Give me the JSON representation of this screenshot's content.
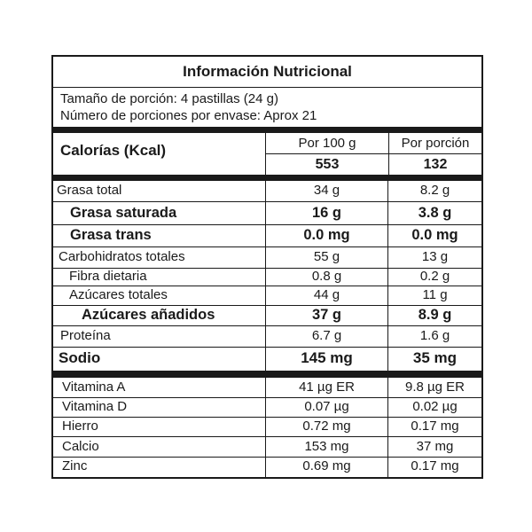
{
  "title": "Información Nutricional",
  "serving": {
    "size": "Tamaño de porción: 4 pastillas (24 g)",
    "servings": "Número de porciones por envase: Aprox 21"
  },
  "calories": {
    "label": "Calorías (Kcal)",
    "col1_header": "Por 100 g",
    "col2_header": "Por porción",
    "per100": "553",
    "perServing": "132"
  },
  "nutrients": [
    {
      "label": "Grasa total",
      "per100": "34 g",
      "perServing": "8.2 g",
      "bold": false
    },
    {
      "label": "Grasa saturada",
      "per100": "16 g",
      "perServing": "3.8 g",
      "bold": true
    },
    {
      "label": "Grasa trans",
      "per100": "0.0 mg",
      "perServing": "0.0 mg",
      "bold": true
    },
    {
      "label": "Carbohidratos totales",
      "per100": "55 g",
      "perServing": "13 g",
      "bold": false
    },
    {
      "label": "Fibra dietaria",
      "per100": "0.8 g",
      "perServing": "0.2 g",
      "bold": false
    },
    {
      "label": "Azúcares totales",
      "per100": "44 g",
      "perServing": "11 g",
      "bold": false
    },
    {
      "label": "Azúcares añadidos",
      "per100": "37 g",
      "perServing": "8.9 g",
      "bold": true
    },
    {
      "label": "Proteína",
      "per100": "6.7 g",
      "perServing": "1.6 g",
      "bold": false
    },
    {
      "label": "Sodio",
      "per100": "145 mg",
      "perServing": "35 mg",
      "bold": true
    }
  ],
  "micronutrients": [
    {
      "label": "Vitamina A",
      "per100": "41 µg ER",
      "perServing": "9.8 µg ER"
    },
    {
      "label": "Vitamina D",
      "per100": "0.07 µg",
      "perServing": "0.02 µg"
    },
    {
      "label": "Hierro",
      "per100": "0.72 mg",
      "perServing": "0.17 mg"
    },
    {
      "label": "Calcio",
      "per100": "153 mg",
      "perServing": "37 mg"
    },
    {
      "label": "Zinc",
      "per100": "0.69 mg",
      "perServing": "0.17 mg"
    }
  ]
}
